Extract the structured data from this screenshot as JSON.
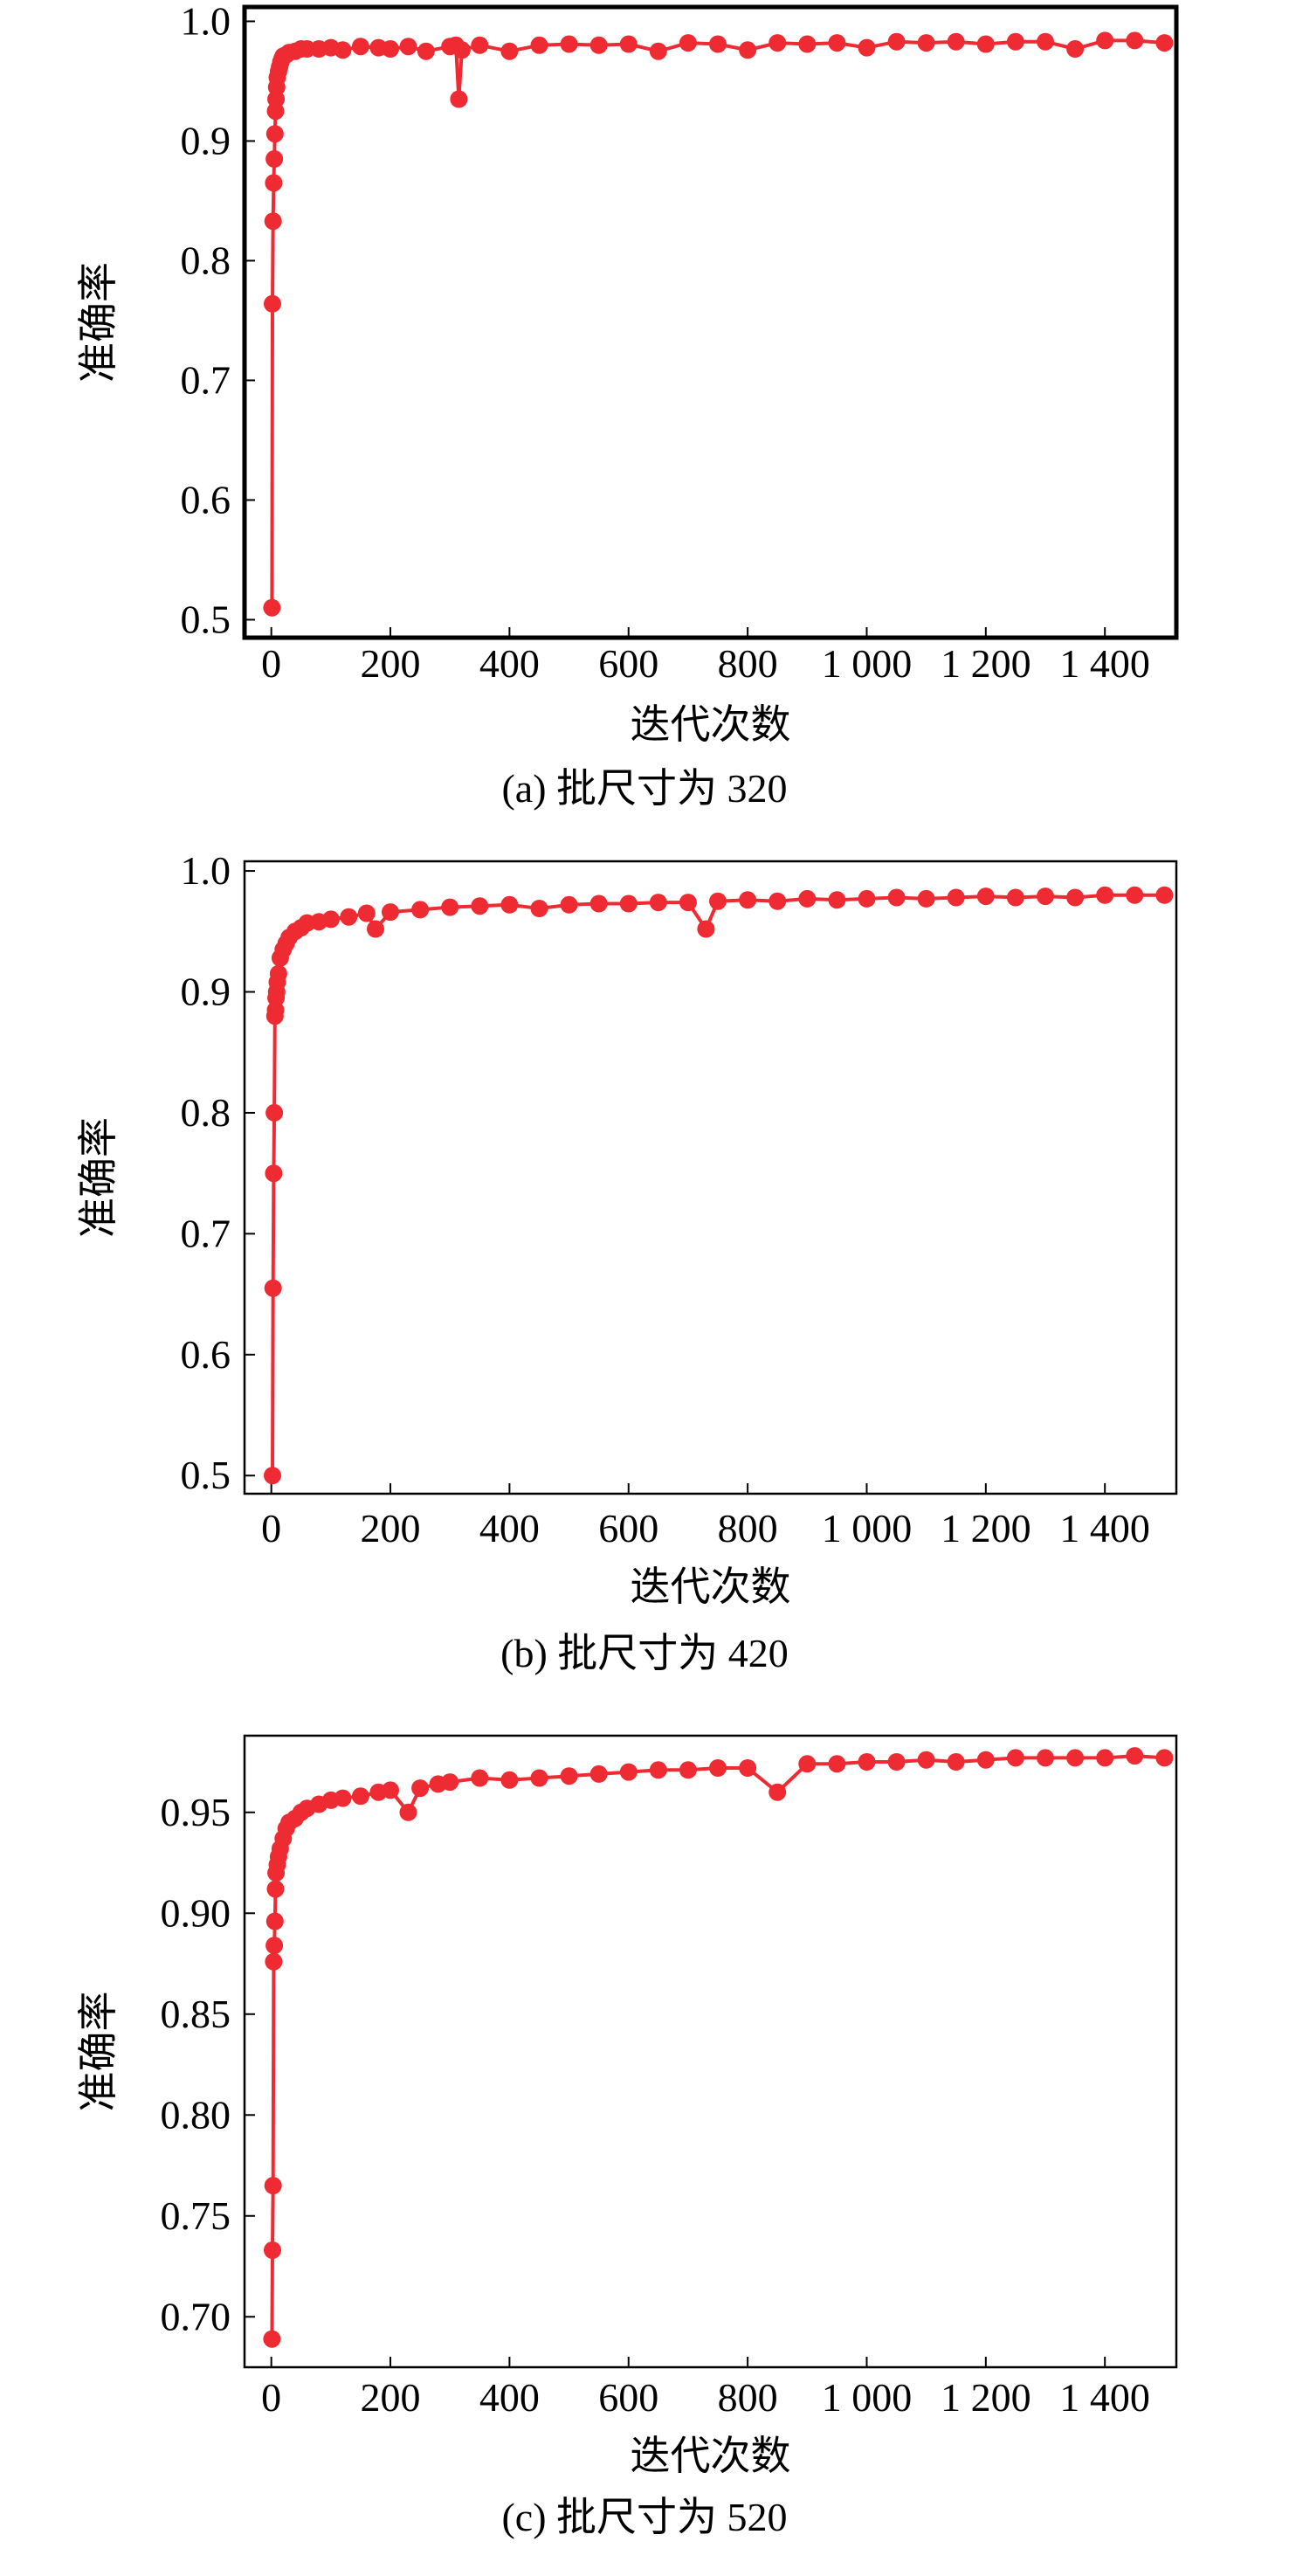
{
  "chart_data": [
    {
      "type": "line",
      "caption": "(a) 批尺寸为 320",
      "xlabel": "迭代次数",
      "ylabel": "准确率",
      "xlim": [
        -45,
        1520
      ],
      "ylim": [
        0.485,
        1.012
      ],
      "xticks": [
        0,
        200,
        400,
        600,
        800,
        1000,
        1200,
        1400
      ],
      "xtick_labels": [
        "0",
        "200",
        "400",
        "600",
        "800",
        "1 000",
        "1 200",
        "1 400"
      ],
      "yticks": [
        0.5,
        0.6,
        0.7,
        0.8,
        0.9,
        1.0
      ],
      "ytick_labels": [
        "0.5",
        "0.6",
        "0.7",
        "0.8",
        "0.9",
        "1.0"
      ],
      "color": "#ee2b33",
      "marker": "circle",
      "bold_frame": true,
      "series": [
        {
          "x": [
            1,
            2,
            3,
            4,
            5,
            6,
            7,
            8,
            9,
            10,
            12,
            14,
            16,
            18,
            20,
            25,
            30,
            40,
            50,
            60,
            80,
            100,
            120,
            150,
            180,
            200,
            230,
            260,
            300,
            310,
            315,
            320,
            350,
            400,
            450,
            500,
            550,
            600,
            650,
            700,
            750,
            800,
            850,
            900,
            950,
            1000,
            1050,
            1100,
            1150,
            1200,
            1250,
            1300,
            1350,
            1400,
            1450,
            1500
          ],
          "y": [
            0.51,
            0.764,
            0.833,
            0.865,
            0.885,
            0.906,
            0.925,
            0.935,
            0.945,
            0.953,
            0.958,
            0.962,
            0.966,
            0.969,
            0.971,
            0.972,
            0.974,
            0.975,
            0.977,
            0.977,
            0.977,
            0.978,
            0.976,
            0.979,
            0.978,
            0.977,
            0.979,
            0.975,
            0.979,
            0.98,
            0.935,
            0.976,
            0.98,
            0.975,
            0.98,
            0.981,
            0.98,
            0.981,
            0.975,
            0.982,
            0.981,
            0.976,
            0.982,
            0.981,
            0.982,
            0.978,
            0.983,
            0.982,
            0.983,
            0.981,
            0.983,
            0.983,
            0.977,
            0.984,
            0.984,
            0.982
          ]
        }
      ]
    },
    {
      "type": "line",
      "caption": "(b) 批尺寸为 420",
      "xlabel": "迭代次数",
      "ylabel": "准确率",
      "xlim": [
        -45,
        1520
      ],
      "ylim": [
        0.485,
        1.008
      ],
      "xticks": [
        0,
        200,
        400,
        600,
        800,
        1000,
        1200,
        1400
      ],
      "xtick_labels": [
        "0",
        "200",
        "400",
        "600",
        "800",
        "1 000",
        "1 200",
        "1 400"
      ],
      "yticks": [
        0.5,
        0.6,
        0.7,
        0.8,
        0.9,
        1.0
      ],
      "ytick_labels": [
        "0.5",
        "0.6",
        "0.7",
        "0.8",
        "0.9",
        "1.0"
      ],
      "color": "#ee2b33",
      "marker": "circle",
      "bold_frame": false,
      "series": [
        {
          "x": [
            2,
            3,
            4,
            5,
            6,
            7,
            8,
            9,
            10,
            12,
            15,
            20,
            25,
            30,
            40,
            50,
            60,
            80,
            100,
            130,
            160,
            175,
            200,
            250,
            300,
            350,
            400,
            450,
            500,
            550,
            600,
            650,
            700,
            730,
            750,
            800,
            850,
            900,
            950,
            1000,
            1050,
            1100,
            1150,
            1200,
            1250,
            1300,
            1350,
            1400,
            1450,
            1500
          ],
          "y": [
            0.5,
            0.655,
            0.75,
            0.8,
            0.88,
            0.885,
            0.895,
            0.9,
            0.908,
            0.915,
            0.928,
            0.935,
            0.94,
            0.945,
            0.95,
            0.953,
            0.957,
            0.958,
            0.96,
            0.962,
            0.965,
            0.952,
            0.966,
            0.968,
            0.97,
            0.971,
            0.972,
            0.969,
            0.972,
            0.973,
            0.973,
            0.974,
            0.974,
            0.952,
            0.975,
            0.976,
            0.975,
            0.977,
            0.976,
            0.977,
            0.978,
            0.977,
            0.978,
            0.979,
            0.978,
            0.979,
            0.978,
            0.98,
            0.98,
            0.98
          ]
        }
      ]
    },
    {
      "type": "line",
      "caption": "(c) 批尺寸为 520",
      "xlabel": "迭代次数",
      "ylabel": "准确率",
      "xlim": [
        -45,
        1520
      ],
      "ylim": [
        0.675,
        0.988
      ],
      "xticks": [
        0,
        200,
        400,
        600,
        800,
        1000,
        1200,
        1400
      ],
      "xtick_labels": [
        "0",
        "200",
        "400",
        "600",
        "800",
        "1 000",
        "1 200",
        "1 400"
      ],
      "yticks": [
        0.7,
        0.75,
        0.8,
        0.85,
        0.9,
        0.95
      ],
      "ytick_labels": [
        "0.70",
        "0.75",
        "0.80",
        "0.85",
        "0.90",
        "0.95"
      ],
      "color": "#ee2b33",
      "marker": "circle",
      "bold_frame": false,
      "series": [
        {
          "x": [
            1,
            2,
            3,
            4,
            5,
            6,
            7,
            8,
            10,
            12,
            15,
            20,
            25,
            30,
            40,
            50,
            60,
            80,
            100,
            120,
            150,
            180,
            200,
            230,
            250,
            280,
            300,
            350,
            400,
            450,
            500,
            550,
            600,
            650,
            700,
            750,
            800,
            850,
            900,
            950,
            1000,
            1050,
            1100,
            1150,
            1200,
            1250,
            1300,
            1350,
            1400,
            1450,
            1500
          ],
          "y": [
            0.689,
            0.733,
            0.765,
            0.876,
            0.884,
            0.896,
            0.912,
            0.92,
            0.924,
            0.928,
            0.932,
            0.937,
            0.942,
            0.945,
            0.947,
            0.95,
            0.952,
            0.954,
            0.956,
            0.957,
            0.958,
            0.96,
            0.961,
            0.95,
            0.962,
            0.964,
            0.965,
            0.967,
            0.966,
            0.967,
            0.968,
            0.969,
            0.97,
            0.971,
            0.971,
            0.972,
            0.972,
            0.96,
            0.974,
            0.974,
            0.975,
            0.975,
            0.976,
            0.975,
            0.976,
            0.977,
            0.977,
            0.977,
            0.977,
            0.978,
            0.977
          ]
        }
      ]
    }
  ]
}
